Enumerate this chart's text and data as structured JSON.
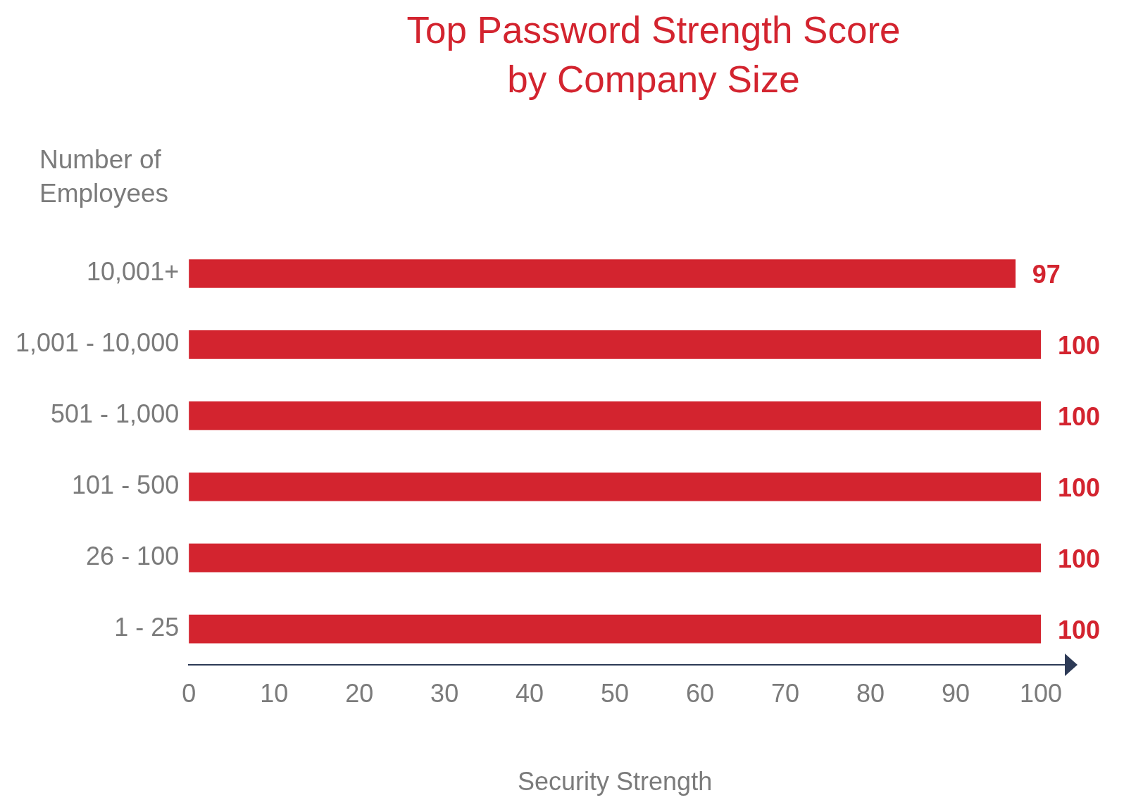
{
  "chart_data": {
    "type": "bar",
    "orientation": "horizontal",
    "title": "Top Password Strength Score by Company Size",
    "ylabel": "Number of Employees",
    "xlabel": "Security Strength",
    "categories": [
      "10,001+",
      "1,001 - 10,000",
      "501 - 1,000",
      "101 - 500",
      "26 - 100",
      "1 - 25"
    ],
    "values": [
      97,
      100,
      100,
      100,
      100,
      100
    ],
    "color": "#d3242f",
    "xlim": [
      0,
      100
    ],
    "xticks": [
      0,
      10,
      20,
      30,
      40,
      50,
      60,
      70,
      80,
      90,
      100
    ],
    "grid": false,
    "legend": false,
    "data_labels": true
  }
}
